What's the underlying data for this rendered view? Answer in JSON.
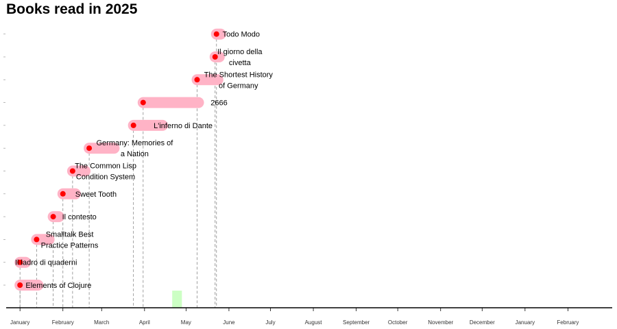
{
  "title": "Books read in 2025",
  "chart_data": {
    "type": "timeline",
    "title": "Books read in 2025",
    "xlabel": "",
    "ylabel": "",
    "x_range": [
      "2024-12-22",
      "2026-03-05"
    ],
    "grid": false,
    "legend": "none",
    "month_ticks": [
      {
        "date": "2025-01-01",
        "label": "January"
      },
      {
        "date": "2025-02-01",
        "label": "February"
      },
      {
        "date": "2025-03-01",
        "label": "March"
      },
      {
        "date": "2025-04-01",
        "label": "April"
      },
      {
        "date": "2025-05-01",
        "label": "May"
      },
      {
        "date": "2025-06-01",
        "label": "June"
      },
      {
        "date": "2025-07-01",
        "label": "July"
      },
      {
        "date": "2025-08-01",
        "label": "August"
      },
      {
        "date": "2025-09-01",
        "label": "September"
      },
      {
        "date": "2025-10-01",
        "label": "October"
      },
      {
        "date": "2025-11-01",
        "label": "November"
      },
      {
        "date": "2025-12-01",
        "label": "December"
      },
      {
        "date": "2026-01-01",
        "label": "January"
      },
      {
        "date": "2026-02-01",
        "label": "February"
      }
    ],
    "books": [
      {
        "title": "Elements of Clojure",
        "lines": [
          "Elements of Clojure"
        ],
        "start": "2025-01-01",
        "end": "2025-01-14"
      },
      {
        "title": "Il ladro di quaderni",
        "lines": [
          "Il ladro di quaderni"
        ],
        "start": "2025-01-01",
        "end": "2025-01-05"
      },
      {
        "title": "Smalltalk Best Practice Patterns",
        "lines": [
          "Smalltalk Best",
          "Practice Patterns"
        ],
        "start": "2025-01-13",
        "end": "2025-01-22"
      },
      {
        "title": "Il contesto",
        "lines": [
          "Il contesto"
        ],
        "start": "2025-01-25",
        "end": "2025-01-29"
      },
      {
        "title": "Sweet Tooth",
        "lines": [
          "Sweet Tooth"
        ],
        "start": "2025-02-01",
        "end": "2025-02-10"
      },
      {
        "title": "The Common Lisp Condition System",
        "lines": [
          "The Common Lisp",
          "Condition System"
        ],
        "start": "2025-02-08",
        "end": "2025-02-17"
      },
      {
        "title": "Germany: Memories of a Nation",
        "lines": [
          "Germany: Memories of",
          "a Nation"
        ],
        "start": "2025-02-20",
        "end": "2025-03-10"
      },
      {
        "title": "L'inferno di Dante",
        "lines": [
          "L'inferno di Dante"
        ],
        "start": "2025-03-24",
        "end": "2025-04-14"
      },
      {
        "title": "2666",
        "lines": [
          "2666"
        ],
        "start": "2025-03-31",
        "end": "2025-05-10"
      },
      {
        "title": "The Shortest History of Germany",
        "lines": [
          "The Shortest History",
          "of Germany"
        ],
        "start": "2025-05-09",
        "end": "2025-05-24"
      },
      {
        "title": "Il giorno della civetta",
        "lines": [
          "Il giorno della",
          "civetta"
        ],
        "start": "2025-05-22",
        "end": "2025-05-25"
      },
      {
        "title": "Todo Modo",
        "lines": [
          "Todo Modo"
        ],
        "start": "2025-05-23",
        "end": "2025-05-26"
      }
    ],
    "current_period": {
      "start": "2025-04-21",
      "end": "2025-04-28"
    },
    "colors": {
      "bar": "#ffb3c6",
      "dot": "#ff0000",
      "highlight": "#ccffc4",
      "guide": "#888888",
      "axis": "#000000"
    }
  }
}
